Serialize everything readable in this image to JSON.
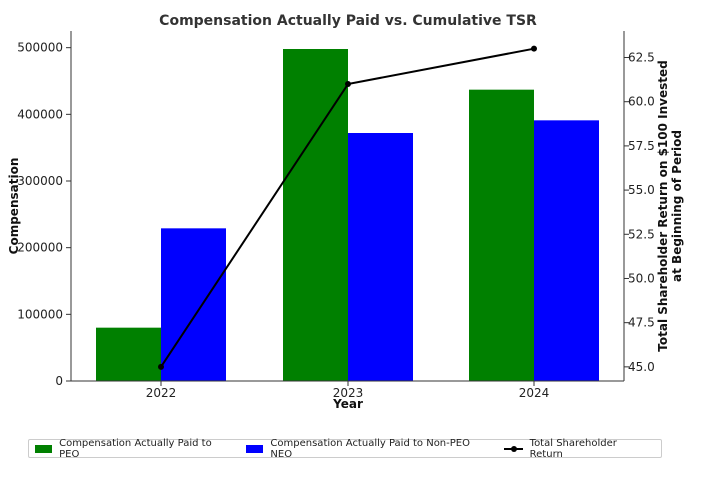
{
  "chart_data": {
    "type": "bar",
    "title": "Compensation Actually Paid vs. Cumulative TSR",
    "xlabel": "Year",
    "ylabel": "Compensation",
    "y2label_line1": "Total Shareholder Return on $100 Invested",
    "y2label_line2": "at Beginning of Period",
    "categories": [
      "2022",
      "2023",
      "2024"
    ],
    "ylim": [
      0,
      525000
    ],
    "y_ticks": [
      "0",
      "100000",
      "200000",
      "300000",
      "400000",
      "500000"
    ],
    "y2lim": [
      44.2,
      64.0
    ],
    "y2_ticks": [
      "45.0",
      "47.5",
      "50.0",
      "52.5",
      "55.0",
      "57.5",
      "60.0",
      "62.5"
    ],
    "series": [
      {
        "name": "Compensation Actually Paid to PEO",
        "type": "bar",
        "color": "#008000",
        "values": [
          80000,
          498000,
          437000
        ]
      },
      {
        "name": "Compensation Actually Paid to Non-PEO NEO",
        "type": "bar",
        "color": "#0000ff",
        "values": [
          229000,
          372000,
          391000
        ]
      },
      {
        "name": "Total Shareholder Return",
        "type": "line",
        "axis": "right",
        "color": "#000000",
        "values": [
          45.0,
          61.0,
          63.0
        ]
      }
    ],
    "grid": false,
    "legend_position": "bottom"
  }
}
